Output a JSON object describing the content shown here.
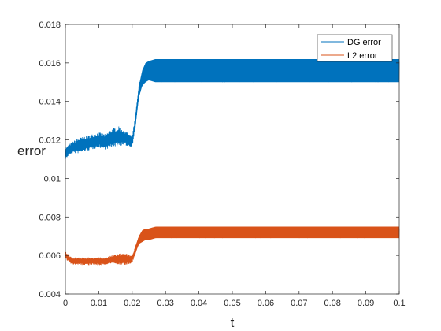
{
  "chart_data": {
    "type": "line",
    "title": "",
    "xlabel": "t",
    "ylabel": "error",
    "xlim": [
      0,
      0.1
    ],
    "ylim": [
      0.004,
      0.018
    ],
    "xticks": [
      "0",
      "0.01",
      "0.02",
      "0.03",
      "0.04",
      "0.05",
      "0.06",
      "0.07",
      "0.08",
      "0.09",
      "0.1"
    ],
    "yticks": [
      "0.004",
      "0.006",
      "0.008",
      "0.01",
      "0.012",
      "0.014",
      "0.016",
      "0.018"
    ],
    "grid": false,
    "legend": "top-right",
    "series": [
      {
        "name": "DG error",
        "color": "#0072BD",
        "x": [
          0,
          0.002,
          0.004,
          0.006,
          0.008,
          0.01,
          0.012,
          0.014,
          0.016,
          0.018,
          0.02,
          0.021,
          0.022,
          0.023,
          0.024,
          0.025,
          0.027,
          0.03,
          0.04,
          0.05,
          0.06,
          0.07,
          0.08,
          0.09,
          0.1
        ],
        "y": [
          0.0113,
          0.0116,
          0.0117,
          0.0118,
          0.0119,
          0.012,
          0.0119,
          0.0121,
          0.0122,
          0.0121,
          0.0119,
          0.013,
          0.0145,
          0.0152,
          0.0155,
          0.0156,
          0.0156,
          0.0156,
          0.0156,
          0.0156,
          0.0156,
          0.0156,
          0.0156,
          0.0156,
          0.0156
        ],
        "band": [
          0.0003,
          0.0003,
          0.0004,
          0.0004,
          0.0004,
          0.0004,
          0.0004,
          0.0005,
          0.0005,
          0.0004,
          0.0003,
          0.0003,
          0.0003,
          0.0004,
          0.0005,
          0.0005,
          0.0006,
          0.0006,
          0.0006,
          0.0006,
          0.0006,
          0.0006,
          0.0006,
          0.0006,
          0.0006
        ]
      },
      {
        "name": "L2 error",
        "color": "#D95319",
        "x": [
          0,
          0.002,
          0.004,
          0.006,
          0.008,
          0.01,
          0.012,
          0.014,
          0.016,
          0.018,
          0.02,
          0.021,
          0.022,
          0.023,
          0.024,
          0.025,
          0.027,
          0.03,
          0.04,
          0.05,
          0.06,
          0.07,
          0.08,
          0.09,
          0.1
        ],
        "y": [
          0.006,
          0.0057,
          0.0057,
          0.0057,
          0.0057,
          0.0057,
          0.0057,
          0.0058,
          0.0058,
          0.0058,
          0.0058,
          0.0063,
          0.0068,
          0.007,
          0.0071,
          0.0071,
          0.0072,
          0.0072,
          0.0072,
          0.0072,
          0.0072,
          0.0072,
          0.0072,
          0.0072,
          0.0072
        ],
        "band": [
          0.0002,
          0.0002,
          0.0002,
          0.0002,
          0.0002,
          0.0002,
          0.0002,
          0.0002,
          0.0003,
          0.0003,
          0.0002,
          0.0002,
          0.0002,
          0.0003,
          0.0003,
          0.0003,
          0.0003,
          0.0003,
          0.0003,
          0.0003,
          0.0003,
          0.0003,
          0.0003,
          0.0003,
          0.0003
        ]
      }
    ]
  }
}
